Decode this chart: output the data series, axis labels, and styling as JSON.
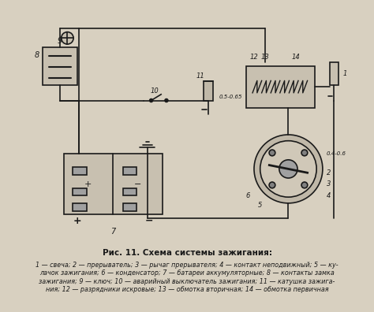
{
  "title": "Рис. 11. Схема системы зажигания:",
  "caption_line1": "1 — свеча; 2 — прерыватель; 3 — рычаг прерывателя; 4 — контакт неподвижный; 5 — ку-",
  "caption_line2": "лачок зажигания; 6 — конденсатор; 7 — батареи аккумуляторные; 8 — контакты замка",
  "caption_line3": "зажигания; 9 — ключ; 10 — аварийный выключатель зажигания; 11 — катушка зажига-",
  "caption_line4": "ния; 12 — разрядники искровые; 13 — обмотка вторичная; 14 — обмотка первичная",
  "bg_color": "#d8d0c0",
  "diagram_bg": "#e8e0d0",
  "line_color": "#1a1a1a",
  "label_color": "#1a1a1a"
}
